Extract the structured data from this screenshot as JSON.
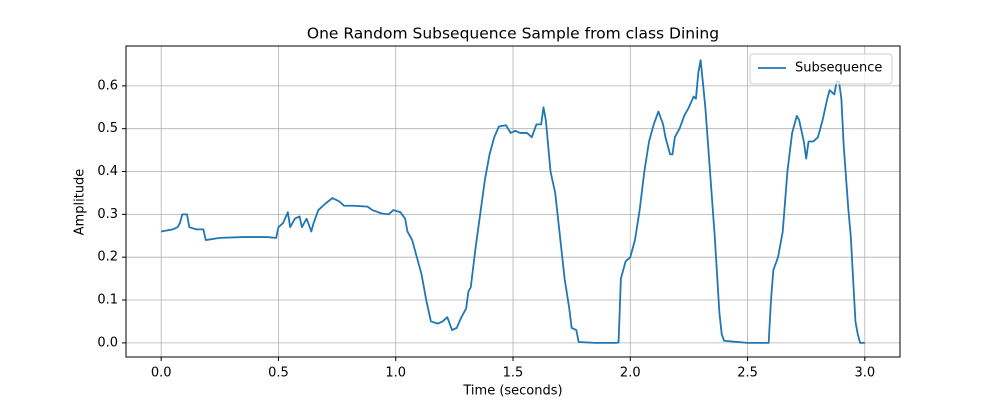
{
  "chart_data": {
    "type": "line",
    "title": "One Random Subsequence Sample from class Dining",
    "x_label": "Time (seconds)",
    "y_label": "Amplitude",
    "x": [
      0.0,
      0.05,
      0.07,
      0.08,
      0.09,
      0.11,
      0.12,
      0.15,
      0.18,
      0.19,
      0.25,
      0.35,
      0.45,
      0.49,
      0.5,
      0.52,
      0.54,
      0.55,
      0.57,
      0.59,
      0.6,
      0.62,
      0.64,
      0.65,
      0.67,
      0.7,
      0.73,
      0.76,
      0.78,
      0.82,
      0.88,
      0.9,
      0.94,
      0.97,
      0.99,
      1.02,
      1.04,
      1.05,
      1.07,
      1.09,
      1.11,
      1.13,
      1.15,
      1.18,
      1.2,
      1.22,
      1.24,
      1.26,
      1.28,
      1.3,
      1.31,
      1.32,
      1.34,
      1.36,
      1.38,
      1.4,
      1.42,
      1.44,
      1.47,
      1.49,
      1.51,
      1.53,
      1.56,
      1.58,
      1.6,
      1.62,
      1.63,
      1.64,
      1.66,
      1.68,
      1.7,
      1.72,
      1.74,
      1.75,
      1.77,
      1.78,
      1.85,
      1.94,
      1.95,
      1.96,
      1.98,
      2.0,
      2.02,
      2.04,
      2.06,
      2.08,
      2.1,
      2.12,
      2.14,
      2.15,
      2.17,
      2.18,
      2.19,
      2.21,
      2.23,
      2.25,
      2.27,
      2.28,
      2.29,
      2.3,
      2.32,
      2.34,
      2.36,
      2.38,
      2.39,
      2.4,
      2.5,
      2.59,
      2.6,
      2.61,
      2.63,
      2.65,
      2.67,
      2.69,
      2.71,
      2.72,
      2.74,
      2.75,
      2.76,
      2.78,
      2.8,
      2.82,
      2.84,
      2.85,
      2.87,
      2.88,
      2.89,
      2.9,
      2.91,
      2.93,
      2.94,
      2.96,
      2.97,
      2.98,
      3.0
    ],
    "series": [
      {
        "name": "Subsequence",
        "color": "#1f77b4",
        "values": [
          0.26,
          0.265,
          0.27,
          0.28,
          0.3,
          0.3,
          0.27,
          0.265,
          0.265,
          0.24,
          0.245,
          0.247,
          0.247,
          0.245,
          0.27,
          0.28,
          0.305,
          0.27,
          0.29,
          0.295,
          0.27,
          0.29,
          0.26,
          0.28,
          0.31,
          0.325,
          0.338,
          0.33,
          0.32,
          0.32,
          0.318,
          0.31,
          0.302,
          0.3,
          0.31,
          0.305,
          0.29,
          0.26,
          0.24,
          0.2,
          0.16,
          0.1,
          0.05,
          0.045,
          0.05,
          0.06,
          0.03,
          0.035,
          0.06,
          0.08,
          0.12,
          0.13,
          0.22,
          0.3,
          0.38,
          0.44,
          0.48,
          0.505,
          0.508,
          0.49,
          0.495,
          0.49,
          0.49,
          0.48,
          0.51,
          0.51,
          0.55,
          0.52,
          0.4,
          0.35,
          0.25,
          0.15,
          0.08,
          0.035,
          0.03,
          0.002,
          0.0,
          0.0,
          0.001,
          0.15,
          0.19,
          0.2,
          0.24,
          0.31,
          0.4,
          0.47,
          0.51,
          0.54,
          0.51,
          0.48,
          0.44,
          0.44,
          0.48,
          0.5,
          0.53,
          0.55,
          0.575,
          0.57,
          0.63,
          0.66,
          0.55,
          0.4,
          0.25,
          0.07,
          0.02,
          0.005,
          0.0,
          0.0,
          0.1,
          0.17,
          0.2,
          0.26,
          0.4,
          0.49,
          0.53,
          0.52,
          0.47,
          0.43,
          0.47,
          0.47,
          0.48,
          0.52,
          0.57,
          0.59,
          0.58,
          0.61,
          0.61,
          0.57,
          0.46,
          0.31,
          0.25,
          0.05,
          0.02,
          0.0,
          0.0
        ]
      }
    ],
    "xlim": [
      -0.15,
      3.15
    ],
    "xticks": [
      {
        "value": 0,
        "label": "0.0"
      },
      0.5,
      {
        "value": 1,
        "label": "1.0"
      },
      1.5,
      {
        "value": 2,
        "label": "2.0"
      },
      2.5,
      {
        "value": 3,
        "label": "3.0"
      }
    ],
    "ylim": [
      -0.033,
      0.693
    ],
    "yticks": [
      {
        "value": 0,
        "label": "0.0"
      },
      0.1,
      0.2,
      0.3,
      0.4,
      0.5,
      0.6
    ],
    "grid": true,
    "legend": "upper right"
  }
}
